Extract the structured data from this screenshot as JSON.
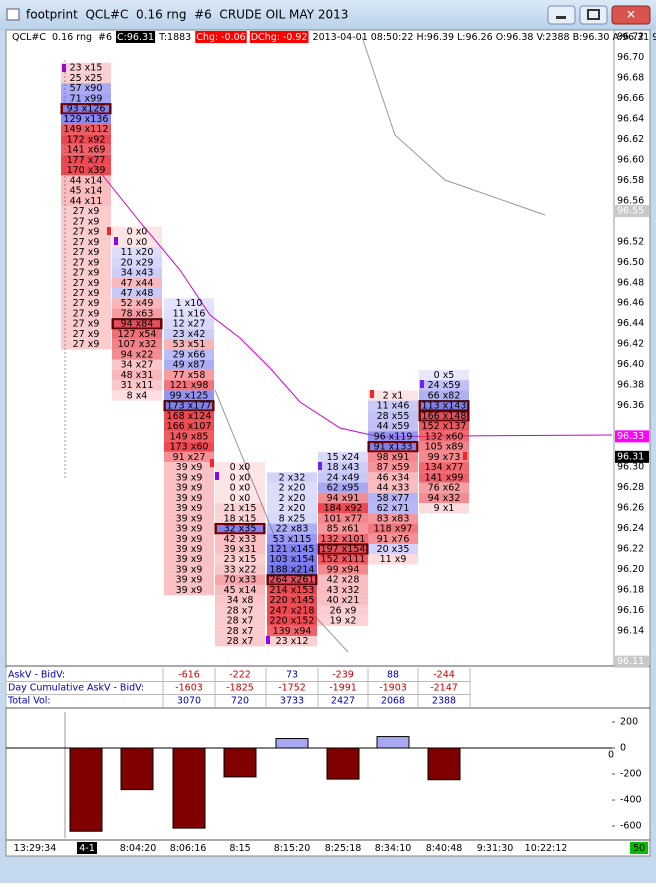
{
  "window": {
    "title": "footprint  QCL#C  0.16 rng  #6  CRUDE OIL MAY 2013"
  },
  "info_bar": {
    "symbol": "QCL#C  0.16 rng  #6",
    "close": "C:96.31",
    "ticks": "T:1883",
    "change": "Chg: -0.06",
    "day_change": "DChg: -0.92",
    "details": "2013-04-01 08:50:22 H:96.39 L:96.26 O:96.38 V:2388 B:96.30 A:96.31 9x13 RR:0."
  },
  "price_axis": {
    "labels": [
      "96.72",
      "96.70",
      "96.68",
      "96.66",
      "96.64",
      "96.62",
      "96.60",
      "96.58",
      "96.56",
      "96.52",
      "96.50",
      "96.48",
      "96.46",
      "96.44",
      "96.42",
      "96.40",
      "96.38",
      "96.36",
      "96.30",
      "96.28",
      "96.26",
      "96.24",
      "96.22",
      "96.20",
      "96.18",
      "96.16",
      "96.14"
    ],
    "markers": [
      "96.55",
      "96.33",
      "96.31",
      "96.11"
    ]
  },
  "columns": [
    {
      "cells": [
        "23 x15",
        "25 x25",
        "57 x90",
        "71 x99",
        "93 x126",
        "129 x136",
        "149 x112",
        "172 x92",
        "141 x69",
        "177 x77",
        "170 x39",
        "44 x14",
        "45 x14",
        "44 x11",
        "27 x9",
        "27 x9",
        "27 x9",
        "27 x9",
        "27 x9",
        "27 x9",
        "27 x9",
        "27 x9",
        "27 x9",
        "27 x9",
        "27 x9",
        "27 x9",
        "27 x9",
        "27 x9"
      ]
    },
    {
      "cells": [
        "0 x0",
        "0 x0",
        "11 x20",
        "20 x29",
        "34 x43",
        "47 x44",
        "47 x48",
        "52 x49",
        "78 x63",
        "94 x84",
        "127 x54",
        "107 x32",
        "94 x22",
        "34 x27",
        "48 x31",
        "31 x11",
        "8 x4"
      ]
    },
    {
      "cells": [
        "1 x10",
        "11 x16",
        "12 x27",
        "23 x42",
        "53 x51",
        "29 x66",
        "49 x87",
        "77 x58",
        "121 x98",
        "99 x125",
        "173 x177",
        "168 x124",
        "166 x107",
        "149 x85",
        "173 x60",
        "91 x27",
        "39 x9",
        "39 x9",
        "39 x9",
        "39 x9",
        "39 x9",
        "39 x9",
        "39 x9",
        "39 x9",
        "39 x9",
        "39 x9",
        "39 x9",
        "39 x9",
        "39 x9"
      ]
    },
    {
      "cells": [
        "0 x0",
        "0 x0",
        "0 x0",
        "0 x0",
        "21 x15",
        "18 x15",
        "32 x35",
        "42 x33",
        "39 x31",
        "23 x15",
        "33 x22",
        "70 x33",
        "45 x14",
        "34 x8",
        "28 x7",
        "28 x7",
        "28 x7",
        "28 x7"
      ]
    },
    {
      "cells": [
        "2 x32",
        "2 x20",
        "2 x20",
        "2 x20",
        "8 x25",
        "22 x83",
        "53 x115",
        "121 x145",
        "103 x154",
        "188 x214",
        "264 x261",
        "214 x153",
        "220 x145",
        "247 x218",
        "220 x152",
        "139 x94",
        "23 x12"
      ]
    },
    {
      "cells": [
        "15 x24",
        "18 x43",
        "24 x49",
        "62 x95",
        "94 x91",
        "184 x92",
        "101 x77",
        "85 x61",
        "132 x101",
        "197 x154",
        "152 x111",
        "99 x94",
        "42 x28",
        "43 x32",
        "40 x21",
        "26 x9",
        "19 x2"
      ]
    },
    {
      "cells": [
        "2 x1",
        "11 x46",
        "28 x55",
        "44 x59",
        "96 x119",
        "91 x133",
        "98 x91",
        "87 x59",
        "46 x34",
        "44 x33",
        "58 x77",
        "62 x71",
        "83 x83",
        "118 x97",
        "91 x76",
        "20 x35",
        "11 x9"
      ]
    },
    {
      "cells": [
        "0 x5",
        "24 x59",
        "66 x82",
        "113 x143",
        "166 x148",
        "152 x137",
        "132 x60",
        "105 x89",
        "99 x73",
        "134 x77",
        "141 x99",
        "76 x62",
        "94 x32",
        "9 x1"
      ]
    }
  ],
  "stats": {
    "rows": [
      {
        "label": "AskV - BidV:",
        "values": [
          "-616",
          "-222",
          "73",
          "-239",
          "88",
          "-244"
        ]
      },
      {
        "label": "Day Cumulative AskV - BidV:",
        "values": [
          "-1603",
          "-1825",
          "-1752",
          "-1991",
          "-1903",
          "-2147"
        ]
      },
      {
        "label": "Total Vol:",
        "values": [
          "3070",
          "720",
          "3733",
          "2427",
          "2068",
          "2388"
        ]
      }
    ]
  },
  "oscillator": {
    "values": [
      -640,
      -320,
      -616,
      -222,
      73,
      -239,
      88,
      -244
    ],
    "ylim": [
      -692,
      277
    ],
    "yticks": [
      200,
      0,
      -200,
      -400,
      -600
    ],
    "zero_label": "0"
  },
  "time_axis": {
    "labels": [
      "13:29:34",
      "4-1",
      "8:04:20",
      "8:06:16",
      "8:15",
      "8:15:20",
      "8:25:18",
      "8:34:10",
      "8:40:48",
      "9:31:30",
      "10:22:12"
    ],
    "counter": "50"
  }
}
